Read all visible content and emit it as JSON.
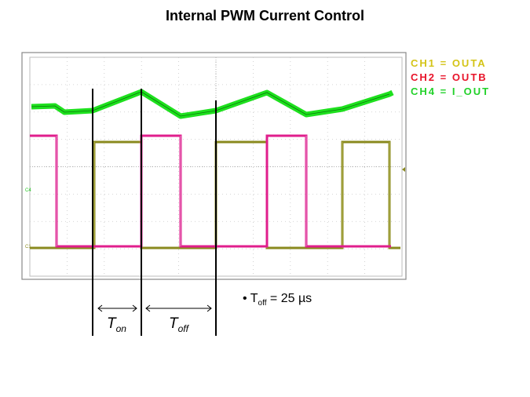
{
  "title": "Internal PWM Current Control",
  "legend": [
    {
      "text": "CH1 = OUTA",
      "color": "#d4c417"
    },
    {
      "text": "CH2 = OUTB",
      "color": "#e8142a"
    },
    {
      "text": "CH4 = I_OUT",
      "color": "#22d12a"
    }
  ],
  "annotation": {
    "symbol": "T",
    "sub": "off",
    "text": " = 25 µs"
  },
  "ton": {
    "symbol": "T",
    "sub": "on"
  },
  "toff": {
    "symbol": "T",
    "sub": "off"
  },
  "markers": {
    "ch4": "C4",
    "ch1": "C1"
  },
  "colors": {
    "outa": "#8a8a1e",
    "outb": "#e01e8c",
    "iout": "#1ee01e",
    "grid": "#bcbcbc",
    "frame": "#888888"
  }
}
